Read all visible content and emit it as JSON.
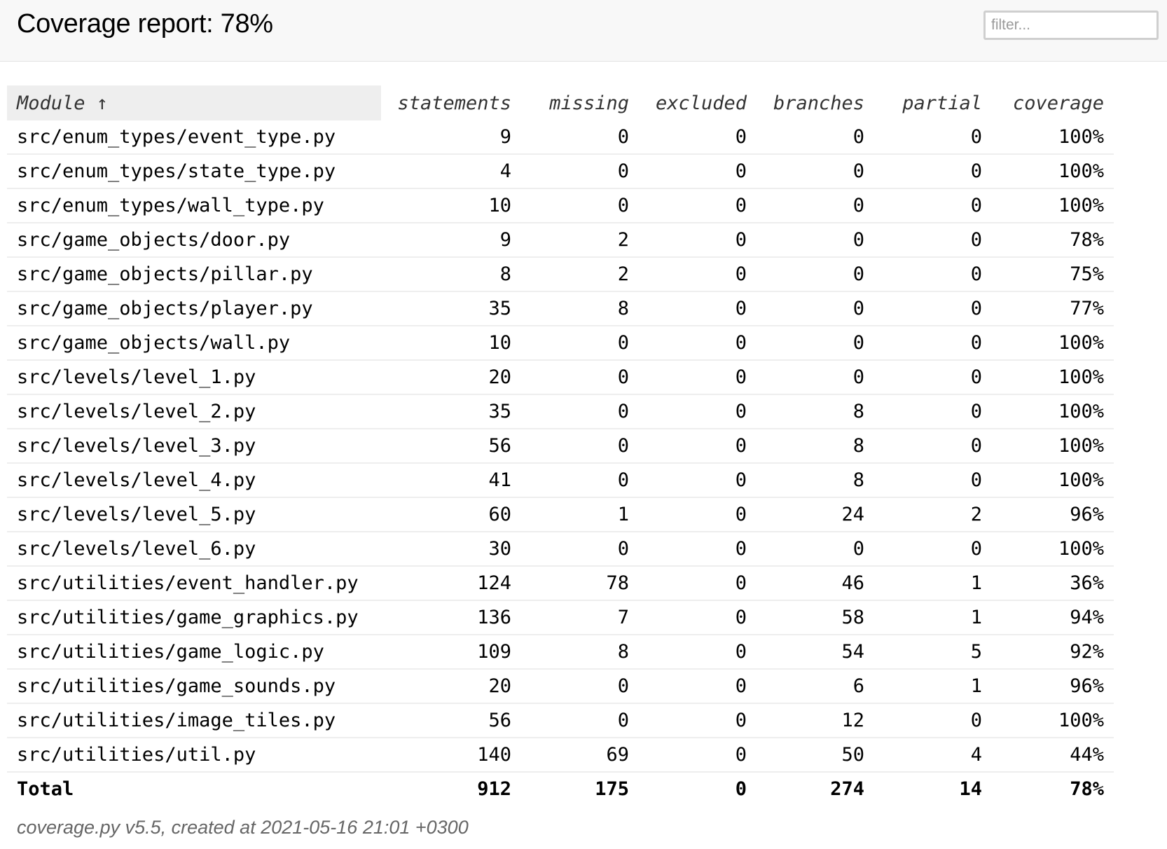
{
  "header": {
    "title": "Coverage report: 78%",
    "filter_placeholder": "filter..."
  },
  "columns": {
    "module": "Module ↑",
    "statements": "statements",
    "missing": "missing",
    "excluded": "excluded",
    "branches": "branches",
    "partial": "partial",
    "coverage": "coverage"
  },
  "rows": [
    {
      "module": "src/enum_types/event_type.py",
      "statements": "9",
      "missing": "0",
      "excluded": "0",
      "branches": "0",
      "partial": "0",
      "coverage": "100%"
    },
    {
      "module": "src/enum_types/state_type.py",
      "statements": "4",
      "missing": "0",
      "excluded": "0",
      "branches": "0",
      "partial": "0",
      "coverage": "100%"
    },
    {
      "module": "src/enum_types/wall_type.py",
      "statements": "10",
      "missing": "0",
      "excluded": "0",
      "branches": "0",
      "partial": "0",
      "coverage": "100%"
    },
    {
      "module": "src/game_objects/door.py",
      "statements": "9",
      "missing": "2",
      "excluded": "0",
      "branches": "0",
      "partial": "0",
      "coverage": "78%"
    },
    {
      "module": "src/game_objects/pillar.py",
      "statements": "8",
      "missing": "2",
      "excluded": "0",
      "branches": "0",
      "partial": "0",
      "coverage": "75%"
    },
    {
      "module": "src/game_objects/player.py",
      "statements": "35",
      "missing": "8",
      "excluded": "0",
      "branches": "0",
      "partial": "0",
      "coverage": "77%"
    },
    {
      "module": "src/game_objects/wall.py",
      "statements": "10",
      "missing": "0",
      "excluded": "0",
      "branches": "0",
      "partial": "0",
      "coverage": "100%"
    },
    {
      "module": "src/levels/level_1.py",
      "statements": "20",
      "missing": "0",
      "excluded": "0",
      "branches": "0",
      "partial": "0",
      "coverage": "100%"
    },
    {
      "module": "src/levels/level_2.py",
      "statements": "35",
      "missing": "0",
      "excluded": "0",
      "branches": "8",
      "partial": "0",
      "coverage": "100%"
    },
    {
      "module": "src/levels/level_3.py",
      "statements": "56",
      "missing": "0",
      "excluded": "0",
      "branches": "8",
      "partial": "0",
      "coverage": "100%"
    },
    {
      "module": "src/levels/level_4.py",
      "statements": "41",
      "missing": "0",
      "excluded": "0",
      "branches": "8",
      "partial": "0",
      "coverage": "100%"
    },
    {
      "module": "src/levels/level_5.py",
      "statements": "60",
      "missing": "1",
      "excluded": "0",
      "branches": "24",
      "partial": "2",
      "coverage": "96%"
    },
    {
      "module": "src/levels/level_6.py",
      "statements": "30",
      "missing": "0",
      "excluded": "0",
      "branches": "0",
      "partial": "0",
      "coverage": "100%"
    },
    {
      "module": "src/utilities/event_handler.py",
      "statements": "124",
      "missing": "78",
      "excluded": "0",
      "branches": "46",
      "partial": "1",
      "coverage": "36%"
    },
    {
      "module": "src/utilities/game_graphics.py",
      "statements": "136",
      "missing": "7",
      "excluded": "0",
      "branches": "58",
      "partial": "1",
      "coverage": "94%"
    },
    {
      "module": "src/utilities/game_logic.py",
      "statements": "109",
      "missing": "8",
      "excluded": "0",
      "branches": "54",
      "partial": "5",
      "coverage": "92%"
    },
    {
      "module": "src/utilities/game_sounds.py",
      "statements": "20",
      "missing": "0",
      "excluded": "0",
      "branches": "6",
      "partial": "1",
      "coverage": "96%"
    },
    {
      "module": "src/utilities/image_tiles.py",
      "statements": "56",
      "missing": "0",
      "excluded": "0",
      "branches": "12",
      "partial": "0",
      "coverage": "100%"
    },
    {
      "module": "src/utilities/util.py",
      "statements": "140",
      "missing": "69",
      "excluded": "0",
      "branches": "50",
      "partial": "4",
      "coverage": "44%"
    }
  ],
  "total": {
    "module": "Total",
    "statements": "912",
    "missing": "175",
    "excluded": "0",
    "branches": "274",
    "partial": "14",
    "coverage": "78%"
  },
  "footer": {
    "text": "coverage.py v5.5, created at 2021-05-16 21:01 +0300"
  }
}
